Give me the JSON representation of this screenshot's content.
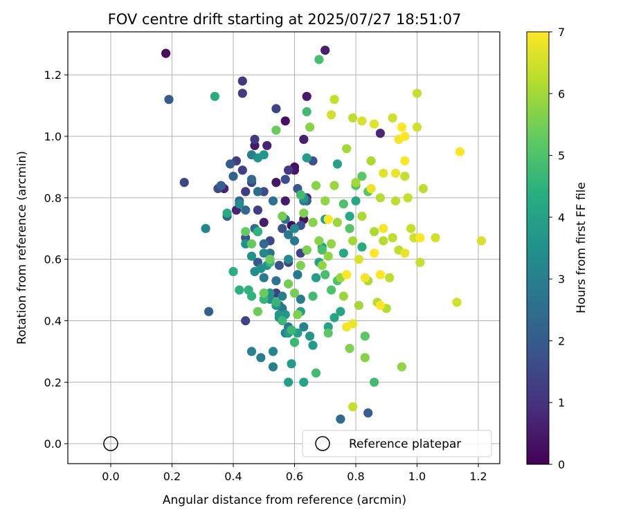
{
  "chart_data": {
    "type": "scatter",
    "title": "FOV centre drift starting at 2025/07/27 18:51:07",
    "xlabel": "Angular distance from reference (arcmin)",
    "ylabel": "Rotation from reference (arcmin)",
    "xlim": [
      -0.14,
      1.27
    ],
    "ylim": [
      -0.065,
      1.34
    ],
    "xticks": [
      "0.0",
      "0.2",
      "0.4",
      "0.6",
      "0.8",
      "1.0",
      "1.2"
    ],
    "yticks": [
      "0.0",
      "0.2",
      "0.4",
      "0.6",
      "0.8",
      "1.0",
      "1.2"
    ],
    "grid": true,
    "colormap": "viridis",
    "colorbar": {
      "label": "Hours from first FF file",
      "range": [
        0,
        7
      ],
      "ticks": [
        "0",
        "1",
        "2",
        "3",
        "4",
        "5",
        "6",
        "7"
      ]
    },
    "legend": {
      "position": "lower-right",
      "entries": [
        "Reference platepar"
      ]
    },
    "reference_point": {
      "x": 0.0,
      "y": 0.0
    },
    "series": [
      {
        "name": "Reference platepar",
        "points": [
          [
            0.0,
            0.0
          ]
        ]
      },
      {
        "points": [
          [
            0.18,
            1.27,
            0.2
          ],
          [
            0.7,
            1.28,
            0.6
          ],
          [
            0.64,
            1.13,
            0.5
          ],
          [
            0.6,
            0.9,
            0.3
          ],
          [
            0.54,
            0.85,
            0.4
          ],
          [
            0.63,
            0.73,
            0.3
          ],
          [
            0.59,
            0.71,
            0.2
          ],
          [
            0.57,
            1.05,
            0.3
          ],
          [
            0.47,
            0.97,
            0.5
          ],
          [
            0.37,
            0.83,
            0.7
          ],
          [
            0.6,
            0.89,
            0.4
          ],
          [
            0.63,
            0.99,
            0.6
          ],
          [
            0.88,
            1.01,
            0.8
          ],
          [
            0.51,
            0.97,
            0.7
          ],
          [
            0.41,
            0.76,
            0.7
          ],
          [
            0.5,
            0.72,
            0.6
          ],
          [
            0.64,
            0.8,
            0.6
          ],
          [
            0.57,
            0.79,
            0.5
          ],
          [
            0.43,
            1.18,
            1.1
          ],
          [
            0.43,
            1.14,
            1.2
          ],
          [
            0.47,
            0.99,
            1.2
          ],
          [
            0.41,
            0.92,
            1.3
          ],
          [
            0.43,
            0.89,
            1.3
          ],
          [
            0.44,
            0.82,
            1.2
          ],
          [
            0.48,
            0.76,
            1.3
          ],
          [
            0.54,
            1.09,
            1.4
          ],
          [
            0.58,
            0.89,
            1.2
          ],
          [
            0.24,
            0.85,
            1.5
          ],
          [
            0.35,
            0.83,
            1.6
          ],
          [
            0.46,
            0.85,
            1.5
          ],
          [
            0.48,
            0.69,
            1.4
          ],
          [
            0.54,
            0.49,
            1.3
          ],
          [
            0.44,
            0.4,
            1.4
          ],
          [
            0.52,
            0.66,
            1.5
          ],
          [
            0.58,
            0.59,
            1.4
          ],
          [
            0.62,
            0.62,
            1.4
          ],
          [
            0.5,
            0.82,
            1.6
          ],
          [
            0.44,
            0.67,
            1.7
          ],
          [
            0.57,
            0.86,
            1.6
          ],
          [
            0.56,
            0.7,
            1.7
          ],
          [
            0.62,
            0.71,
            1.8
          ],
          [
            0.66,
            0.92,
            1.8
          ],
          [
            0.61,
            0.83,
            1.9
          ],
          [
            0.64,
            0.79,
            2.0
          ],
          [
            0.48,
            0.59,
            1.9
          ],
          [
            0.39,
            0.91,
            2.0
          ],
          [
            0.55,
            0.58,
            1.8
          ],
          [
            0.19,
            1.12,
            2.0
          ],
          [
            0.32,
            0.43,
            2.1
          ],
          [
            0.36,
            0.84,
            2.1
          ],
          [
            0.38,
            0.74,
            2.2
          ],
          [
            0.4,
            0.87,
            2.2
          ],
          [
            0.42,
            0.79,
            2.3
          ],
          [
            0.44,
            0.76,
            2.4
          ],
          [
            0.46,
            0.86,
            2.4
          ],
          [
            0.47,
            0.7,
            2.5
          ],
          [
            0.48,
            0.82,
            2.5
          ],
          [
            0.5,
            0.65,
            2.4
          ],
          [
            0.52,
            0.62,
            2.6
          ],
          [
            0.53,
            0.79,
            2.6
          ],
          [
            0.54,
            0.53,
            2.7
          ],
          [
            0.55,
            0.45,
            2.7
          ],
          [
            0.56,
            0.44,
            2.7
          ],
          [
            0.57,
            0.73,
            2.6
          ],
          [
            0.58,
            0.68,
            2.8
          ],
          [
            0.6,
            0.66,
            2.8
          ],
          [
            0.61,
            0.55,
            2.8
          ],
          [
            0.62,
            0.47,
            2.9
          ],
          [
            0.63,
            0.79,
            2.9
          ],
          [
            0.64,
            0.63,
            2.9
          ],
          [
            0.58,
            0.38,
            2.8
          ],
          [
            0.5,
            0.54,
            2.9
          ],
          [
            0.56,
            0.48,
            3.0
          ],
          [
            0.53,
            0.25,
            3.0
          ],
          [
            0.49,
            0.28,
            3.0
          ],
          [
            0.46,
            0.3,
            3.1
          ],
          [
            0.57,
            0.36,
            3.1
          ],
          [
            0.63,
            0.38,
            3.1
          ],
          [
            0.31,
            0.7,
            3.2
          ],
          [
            0.53,
            0.3,
            3.2
          ],
          [
            0.5,
            0.62,
            3.2
          ],
          [
            0.6,
            0.7,
            3.3
          ],
          [
            0.58,
            0.6,
            3.3
          ],
          [
            0.55,
            0.41,
            3.3
          ],
          [
            0.52,
            0.47,
            3.4
          ],
          [
            0.46,
            0.94,
            3.0
          ],
          [
            0.48,
            0.93,
            3.6
          ],
          [
            0.5,
            0.94,
            3.7
          ],
          [
            0.42,
            0.78,
            3.4
          ],
          [
            0.44,
            0.65,
            3.5
          ],
          [
            0.46,
            0.61,
            3.5
          ],
          [
            0.47,
            0.56,
            3.4
          ],
          [
            0.49,
            0.57,
            3.5
          ],
          [
            0.51,
            0.58,
            3.6
          ],
          [
            0.52,
            0.49,
            3.6
          ],
          [
            0.54,
            0.45,
            3.6
          ],
          [
            0.55,
            0.42,
            3.7
          ],
          [
            0.57,
            0.42,
            3.7
          ],
          [
            0.58,
            0.36,
            3.8
          ],
          [
            0.59,
            0.26,
            3.8
          ],
          [
            0.6,
            0.33,
            3.8
          ],
          [
            0.61,
            0.36,
            3.9
          ],
          [
            0.62,
            0.43,
            3.9
          ],
          [
            0.63,
            0.8,
            3.7
          ],
          [
            0.64,
            0.93,
            3.9
          ],
          [
            0.65,
            0.35,
            3.7
          ],
          [
            0.66,
            0.32,
            3.8
          ],
          [
            0.67,
            0.54,
            3.9
          ],
          [
            0.68,
            0.59,
            4.0
          ],
          [
            0.69,
            0.64,
            4.0
          ],
          [
            0.7,
            0.73,
            4.0
          ],
          [
            0.71,
            0.38,
            4.0
          ],
          [
            0.73,
            0.41,
            4.1
          ],
          [
            0.74,
            0.91,
            4.0
          ],
          [
            0.75,
            0.43,
            4.1
          ],
          [
            0.76,
            0.62,
            4.2
          ],
          [
            0.78,
            0.74,
            4.2
          ],
          [
            0.8,
            0.79,
            4.2
          ],
          [
            0.82,
            0.64,
            4.3
          ],
          [
            0.58,
            0.2,
            4.0
          ],
          [
            0.63,
            0.2,
            4.1
          ],
          [
            0.75,
            0.08,
            2.4
          ],
          [
            0.84,
            0.1,
            2.1
          ],
          [
            0.34,
            1.13,
            4.3
          ],
          [
            0.38,
            0.75,
            4.3
          ],
          [
            0.4,
            0.56,
            4.4
          ],
          [
            0.42,
            0.5,
            4.4
          ],
          [
            0.45,
            0.5,
            4.5
          ],
          [
            0.46,
            0.48,
            4.5
          ],
          [
            0.48,
            0.69,
            4.5
          ],
          [
            0.5,
            0.47,
            4.6
          ],
          [
            0.52,
            0.59,
            4.6
          ],
          [
            0.54,
            0.46,
            4.6
          ],
          [
            0.56,
            0.4,
            4.7
          ],
          [
            0.59,
            0.37,
            4.7
          ],
          [
            0.6,
            0.33,
            4.7
          ],
          [
            0.62,
            0.81,
            4.8
          ],
          [
            0.64,
            1.08,
            4.8
          ],
          [
            0.66,
            0.48,
            4.8
          ],
          [
            0.67,
            0.23,
            4.8
          ],
          [
            0.68,
            1.25,
            4.9
          ],
          [
            0.69,
            0.63,
            4.9
          ],
          [
            0.7,
            0.55,
            4.9
          ],
          [
            0.72,
            0.5,
            5.0
          ],
          [
            0.74,
            0.53,
            5.0
          ],
          [
            0.76,
            0.78,
            5.0
          ],
          [
            0.78,
            0.7,
            5.1
          ],
          [
            0.8,
            0.84,
            5.1
          ],
          [
            0.82,
            0.87,
            5.2
          ],
          [
            0.84,
            0.82,
            5.2
          ],
          [
            0.86,
            0.2,
            4.8
          ],
          [
            0.83,
            0.35,
            5.2
          ],
          [
            0.71,
            0.36,
            5.2
          ],
          [
            0.44,
            0.69,
            5.3
          ],
          [
            0.46,
            0.65,
            5.3
          ],
          [
            0.48,
            0.43,
            5.4
          ],
          [
            0.5,
            0.49,
            5.4
          ],
          [
            0.52,
            0.6,
            5.4
          ],
          [
            0.54,
            1.02,
            5.4
          ],
          [
            0.56,
            0.74,
            5.5
          ],
          [
            0.58,
            0.52,
            5.5
          ],
          [
            0.6,
            0.49,
            5.5
          ],
          [
            0.61,
            0.42,
            5.6
          ],
          [
            0.62,
            0.58,
            5.6
          ],
          [
            0.63,
            0.75,
            5.6
          ],
          [
            0.64,
            0.63,
            5.6
          ],
          [
            0.65,
            1.03,
            5.7
          ],
          [
            0.66,
            0.72,
            5.7
          ],
          [
            0.67,
            0.84,
            5.7
          ],
          [
            0.68,
            0.66,
            5.7
          ],
          [
            0.69,
            0.58,
            5.8
          ],
          [
            0.7,
            0.79,
            5.8
          ],
          [
            0.71,
            0.61,
            5.8
          ],
          [
            0.72,
            0.65,
            5.8
          ],
          [
            0.73,
            0.84,
            5.9
          ],
          [
            0.74,
            0.72,
            5.9
          ],
          [
            0.75,
            0.54,
            5.9
          ],
          [
            0.76,
            0.48,
            5.9
          ],
          [
            0.77,
            0.96,
            6.0
          ],
          [
            0.78,
            0.31,
            5.6
          ],
          [
            0.79,
            0.66,
            6.0
          ],
          [
            0.8,
            0.85,
            6.0
          ],
          [
            0.81,
            0.45,
            6.0
          ],
          [
            0.82,
            0.74,
            6.1
          ],
          [
            0.83,
            0.28,
            5.7
          ],
          [
            0.84,
            0.53,
            6.1
          ],
          [
            0.85,
            0.92,
            6.1
          ],
          [
            0.86,
            0.69,
            6.1
          ],
          [
            0.87,
            0.46,
            6.2
          ],
          [
            0.88,
            0.8,
            6.2
          ],
          [
            0.89,
            0.66,
            6.2
          ],
          [
            0.9,
            0.44,
            6.2
          ],
          [
            0.91,
            0.54,
            6.3
          ],
          [
            0.92,
            0.67,
            6.3
          ],
          [
            0.93,
            0.79,
            6.3
          ],
          [
            0.94,
            0.63,
            6.3
          ],
          [
            0.95,
            0.25,
            5.8
          ],
          [
            0.96,
            0.87,
            6.4
          ],
          [
            0.97,
            0.8,
            6.4
          ],
          [
            0.98,
            0.7,
            6.4
          ],
          [
            0.99,
            0.67,
            6.5
          ],
          [
            1.0,
            1.14,
            6.4
          ],
          [
            1.01,
            0.59,
            6.4
          ],
          [
            1.02,
            0.83,
            6.3
          ],
          [
            1.06,
            0.67,
            6.5
          ],
          [
            0.72,
            1.07,
            6.5
          ],
          [
            0.73,
            1.12,
            6.4
          ],
          [
            0.79,
            1.06,
            6.3
          ],
          [
            0.82,
            1.05,
            6.6
          ],
          [
            0.86,
            1.04,
            6.7
          ],
          [
            0.92,
            1.06,
            6.5
          ],
          [
            1.0,
            1.03,
            6.5
          ],
          [
            0.79,
            0.12,
            6.4
          ],
          [
            1.13,
            0.46,
            6.5
          ],
          [
            1.21,
            0.66,
            6.6
          ],
          [
            0.81,
            0.6,
            6.6
          ],
          [
            0.89,
            0.88,
            6.7
          ],
          [
            0.96,
            0.62,
            6.8
          ],
          [
            0.79,
            0.39,
            6.8
          ],
          [
            0.85,
            0.83,
            6.8
          ],
          [
            0.93,
            0.88,
            6.8
          ],
          [
            0.77,
            0.38,
            6.9
          ],
          [
            0.83,
            0.54,
            6.9
          ],
          [
            0.89,
            0.7,
            6.9
          ],
          [
            0.94,
            0.99,
            6.9
          ],
          [
            0.96,
            1.0,
            7.0
          ],
          [
            0.96,
            0.92,
            7.0
          ],
          [
            1.01,
            0.67,
            7.0
          ],
          [
            0.95,
            1.03,
            7.0
          ],
          [
            1.14,
            0.95,
            7.0
          ],
          [
            0.71,
            0.73,
            7.0
          ],
          [
            0.77,
            0.55,
            7.0
          ],
          [
            0.88,
            0.55,
            7.0
          ],
          [
            0.88,
            0.45,
            7.0
          ],
          [
            0.86,
            0.62,
            7.0
          ]
        ]
      }
    ]
  }
}
